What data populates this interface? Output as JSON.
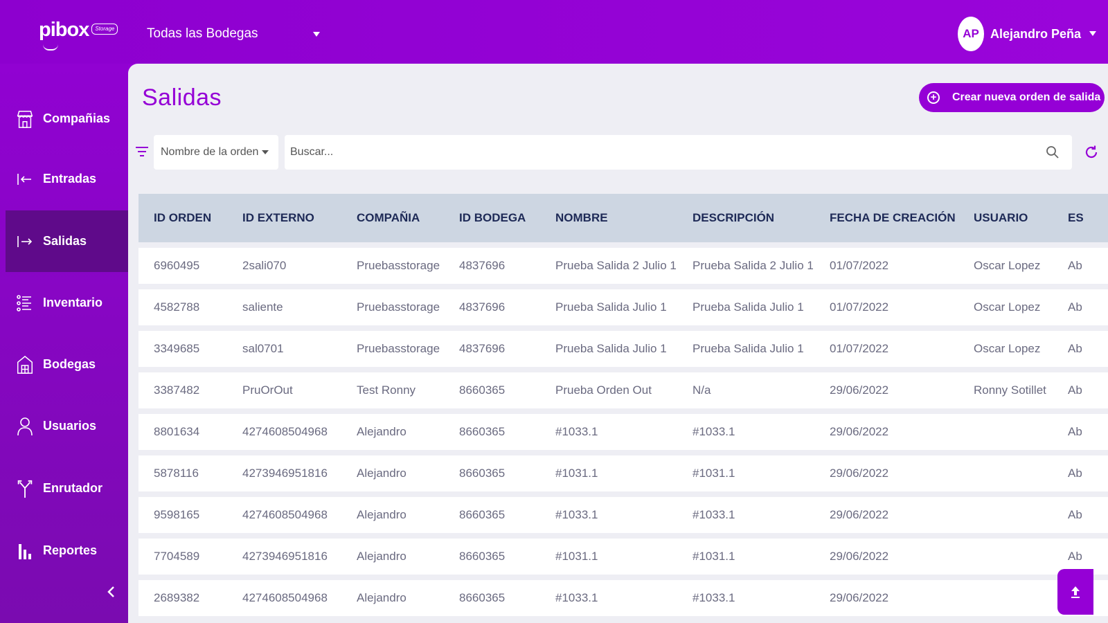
{
  "topbar": {
    "logo_word": "pibox",
    "logo_badge": "Storage",
    "warehouse_selected": "Todas las Bodegas",
    "user_initials": "AP",
    "user_name": "Alejandro Peña"
  },
  "sidebar": {
    "items": [
      {
        "label": "Compañias",
        "icon": "store-icon"
      },
      {
        "label": "Entradas",
        "icon": "arrow-in-icon"
      },
      {
        "label": "Salidas",
        "icon": "arrow-out-icon",
        "active": true
      },
      {
        "label": "Inventario",
        "icon": "list-icon"
      },
      {
        "label": "Bodegas",
        "icon": "warehouse-icon"
      },
      {
        "label": "Usuarios",
        "icon": "user-icon"
      },
      {
        "label": "Enrutador",
        "icon": "router-icon"
      },
      {
        "label": "Reportes",
        "icon": "bar-chart-icon"
      }
    ]
  },
  "main": {
    "title": "Salidas",
    "create_label": "Crear nueva orden de salida",
    "filter_selected": "Nombre de la orden",
    "search_placeholder": "Buscar..."
  },
  "table": {
    "headers": [
      "ID ORDEN",
      "ID EXTERNO",
      "COMPAÑIA",
      "ID BODEGA",
      "NOMBRE",
      "DESCRIPCIÓN",
      "FECHA DE CREACIÓN",
      "USUARIO",
      "ES"
    ],
    "rows": [
      [
        "6960495",
        "2sali070",
        "Pruebasstorage",
        "4837696",
        "Prueba Salida 2 Julio 1",
        "Prueba Salida 2 Julio 1",
        "01/07/2022",
        "Oscar Lopez",
        "Ab"
      ],
      [
        "4582788",
        "saliente",
        "Pruebasstorage",
        "4837696",
        "Prueba Salida Julio 1",
        "Prueba Salida Julio 1",
        "01/07/2022",
        "Oscar Lopez",
        "Ab"
      ],
      [
        "3349685",
        "sal0701",
        "Pruebasstorage",
        "4837696",
        "Prueba Salida Julio 1",
        "Prueba Salida Julio 1",
        "01/07/2022",
        "Oscar Lopez",
        "Ab"
      ],
      [
        "3387482",
        "PruOrOut",
        "Test Ronny",
        "8660365",
        "Prueba Orden Out",
        "N/a",
        "29/06/2022",
        "Ronny Sotillet",
        "Ab"
      ],
      [
        "8801634",
        "4274608504968",
        "Alejandro",
        "8660365",
        "#1033.1",
        "#1033.1",
        "29/06/2022",
        "",
        "Ab"
      ],
      [
        "5878116",
        "4273946951816",
        "Alejandro",
        "8660365",
        "#1031.1",
        "#1031.1",
        "29/06/2022",
        "",
        "Ab"
      ],
      [
        "9598165",
        "4274608504968",
        "Alejandro",
        "8660365",
        "#1033.1",
        "#1033.1",
        "29/06/2022",
        "",
        "Ab"
      ],
      [
        "7704589",
        "4273946951816",
        "Alejandro",
        "8660365",
        "#1031.1",
        "#1031.1",
        "29/06/2022",
        "",
        "Ab"
      ],
      [
        "2689382",
        "4274608504968",
        "Alejandro",
        "8660365",
        "#1033.1",
        "#1033.1",
        "29/06/2022",
        "",
        "Ab"
      ]
    ]
  },
  "colors": {
    "brand": "#9500d6",
    "sidebar_active": "#5f0a8a",
    "header_row": "#cdd6e2"
  }
}
